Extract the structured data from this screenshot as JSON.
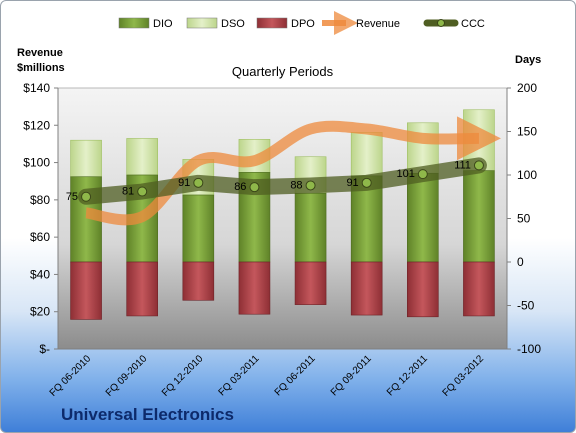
{
  "company": "Universal Electronics",
  "chart_data": {
    "type": "bar",
    "title": "Quarterly Periods",
    "ylabel_left": "Revenue\n$millions",
    "ylabel_right": "Days",
    "categories": [
      "FQ 06-2010",
      "FQ 09-2010",
      "FQ 12-2010",
      "FQ 03-2011",
      "FQ 06-2011",
      "FQ 09-2011",
      "FQ 12-2011",
      "FQ 03-2012"
    ],
    "left_axis": {
      "min": 0,
      "max": 140,
      "ticks": [
        0,
        20,
        40,
        60,
        80,
        100,
        120,
        140
      ],
      "tick_labels": [
        "$-",
        "$20",
        "$40",
        "$60",
        "$80",
        "$100",
        "$120",
        "$140"
      ]
    },
    "right_axis": {
      "min": -100,
      "max": 200,
      "ticks": [
        -100,
        -50,
        0,
        50,
        100,
        150,
        200
      ],
      "tick_labels": [
        "-100",
        "-50",
        "0",
        "50",
        "100",
        "150",
        "200"
      ]
    },
    "series": [
      {
        "name": "DIO",
        "kind": "stacked-bar",
        "axis": "right",
        "color": "#7ea33a",
        "values": [
          98,
          100,
          77,
          103,
          79,
          99,
          102,
          105
        ]
      },
      {
        "name": "DSO",
        "kind": "stacked-bar",
        "axis": "right",
        "color": "#cfe3a3",
        "values": [
          42,
          42,
          41,
          38,
          42,
          50,
          58,
          70
        ]
      },
      {
        "name": "DPO",
        "kind": "negative-bar",
        "axis": "right",
        "color": "#b3454a",
        "values": [
          -66,
          -62,
          -44,
          -60,
          -49,
          -61,
          -63,
          -62
        ]
      },
      {
        "name": "Revenue",
        "kind": "arrow-line",
        "axis": "left",
        "color": "#ee8a3c",
        "values": [
          73,
          71,
          101,
          101,
          118,
          118,
          113,
          113
        ]
      },
      {
        "name": "CCC",
        "kind": "line-markers",
        "axis": "right",
        "color": "#5a6b2a",
        "values": [
          75,
          81,
          91,
          86,
          88,
          91,
          101,
          111
        ],
        "labels": [
          "75",
          "81",
          "91",
          "86",
          "88",
          "91",
          "101",
          "111"
        ]
      }
    ],
    "legend": {
      "placement": "top",
      "entries": [
        "DIO",
        "DSO",
        "DPO",
        "Revenue",
        "CCC"
      ]
    },
    "grid": false
  }
}
